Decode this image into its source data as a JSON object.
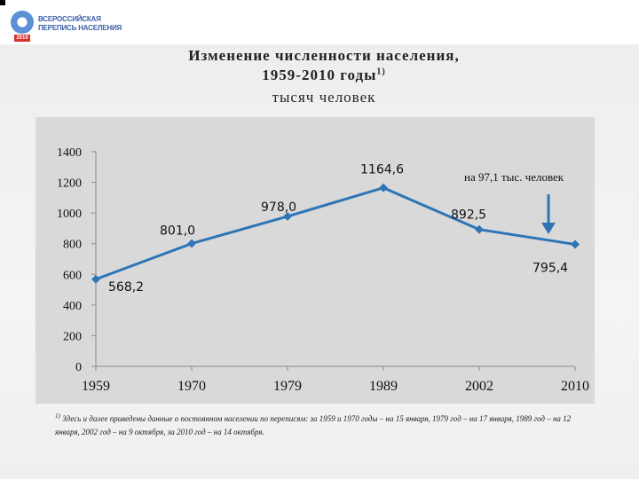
{
  "header": {
    "logo_line1": "ВСЕРОССИЙСКАЯ",
    "logo_line2": "ПЕРЕПИСЬ НАСЕЛЕНИЯ",
    "logo_year": "2010"
  },
  "chart_data": {
    "type": "line",
    "title": "Изменение численности населения, 1959-2010 годы",
    "title_line1": "Изменение численности населения,",
    "title_line2": "1959-2010 годы",
    "title_superscript": "1)",
    "subtitle": "тысяч человек",
    "categories": [
      "1959",
      "1970",
      "1979",
      "1989",
      "2002",
      "2010"
    ],
    "series": [
      {
        "values": [
          568.2,
          801.0,
          978.0,
          1164.6,
          892.5,
          795.4
        ],
        "data_labels": [
          "568,2",
          "801,0",
          "978,0",
          "1164,6",
          "892,5",
          "795,4"
        ],
        "color": "#2e75b6"
      }
    ],
    "x_is_categorical": true,
    "ylim": [
      0,
      1400
    ],
    "yticks": [
      "0",
      "200",
      "400",
      "600",
      "800",
      "1000",
      "1200",
      "1400"
    ],
    "grid": false,
    "legend": "none",
    "annotation": {
      "text": "на 97,1 тыс. человек",
      "arrow_color": "#2e75b6",
      "points_to": "2010"
    },
    "background_color": "#d9d9d9"
  },
  "footnote": {
    "marker": "1)",
    "text": "Здесь и далее приведены данные о постоянном населении по переписям: за 1959 и 1970 годы – на 15 января, 1979 год – на 17 января, 1989 год – на 12 января, 2002 год – на 9 октября, за 2010 год – на 14 октября."
  }
}
